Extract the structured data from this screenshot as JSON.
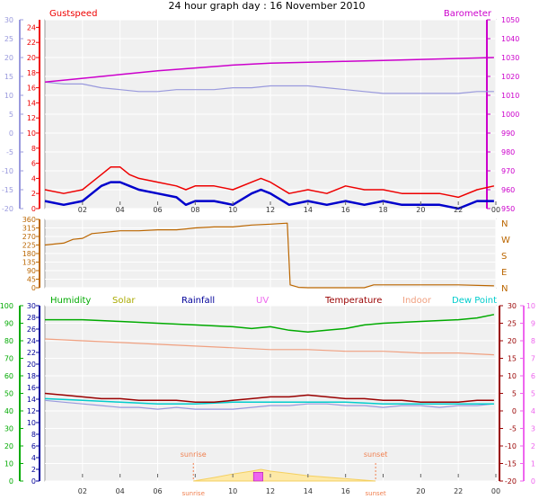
{
  "title": "24 hour graph day : 16 November 2010",
  "colors": {
    "plot_bg": "#f0f0f0",
    "grid": "#ffffff",
    "gust": "#ee0000",
    "wind": "#0000cc",
    "barometer": "#cc00cc",
    "temp_blue": "#9999dd",
    "wind_dir": "#bb6600",
    "humidity": "#00aa00",
    "solar": "#aaaa00",
    "rainfall": "#000099",
    "uv": "#ee66ee",
    "temperature": "#990000",
    "indoor": "#f0a080",
    "dewpoint": "#00cccc",
    "sun_event": "#f08050"
  },
  "x_ticks": [
    "02",
    "04",
    "06",
    "08",
    "10",
    "12",
    "14",
    "16",
    "18",
    "20",
    "22",
    "00"
  ],
  "chart_data": [
    {
      "type": "line",
      "legend": {
        "left": "Gustspeed",
        "right": "Barometer"
      },
      "y_left_outer": {
        "ticks": [
          30,
          25,
          20,
          15,
          10,
          5,
          0,
          -5,
          -10,
          -15,
          -20
        ],
        "range": [
          -20,
          30
        ]
      },
      "y_left_inner": {
        "ticks": [
          24,
          22,
          20,
          18,
          16,
          14,
          12,
          10,
          8,
          6,
          4,
          2,
          0
        ],
        "range": [
          0,
          25
        ]
      },
      "y_right": {
        "ticks": [
          1050,
          1040,
          1030,
          1020,
          1010,
          1000,
          990,
          980,
          970,
          960,
          950
        ],
        "range": [
          950,
          1050
        ]
      },
      "series": [
        {
          "name": "Barometer",
          "axis": "right",
          "x": [
            0,
            2,
            4,
            6,
            8,
            10,
            12,
            14,
            16,
            18,
            20,
            22,
            23.9
          ],
          "values": [
            1017,
            1019,
            1021,
            1023,
            1024.5,
            1026,
            1027,
            1027.5,
            1028,
            1028.5,
            1029,
            1029.5,
            1030
          ]
        },
        {
          "name": "Gustspeed",
          "axis": "left_inner",
          "x": [
            0,
            1,
            2,
            2.5,
            3,
            3.5,
            4,
            4.5,
            5,
            6,
            7,
            7.5,
            8,
            9,
            10,
            11,
            11.5,
            12,
            13,
            14,
            15,
            16,
            17,
            18,
            19,
            20,
            21,
            22,
            23,
            23.9
          ],
          "values": [
            2.5,
            2,
            2.5,
            3.5,
            4.5,
            5.5,
            5.5,
            4.5,
            4,
            3.5,
            3,
            2.5,
            3,
            3,
            2.5,
            3.5,
            4,
            3.5,
            2,
            2.5,
            2,
            3,
            2.5,
            2.5,
            2,
            2,
            2,
            1.5,
            2.5,
            3
          ]
        },
        {
          "x": [
            0,
            1,
            2,
            2.5,
            3,
            3.5,
            4,
            4.5,
            5,
            6,
            7,
            7.5,
            8,
            9,
            10,
            11,
            11.5,
            12,
            13,
            14,
            15,
            16,
            17,
            18,
            19,
            20,
            21,
            22,
            23,
            23.9
          ],
          "values": [
            1,
            0.5,
            1,
            2,
            3,
            3.5,
            3.5,
            3,
            2.5,
            2,
            1.5,
            0.5,
            1,
            1,
            0.5,
            2,
            2.5,
            2,
            0.5,
            1,
            0.5,
            1,
            0.5,
            1,
            0.5,
            0.5,
            0.5,
            0,
            1,
            1
          ]
        },
        {
          "axis": "left_outer",
          "x": [
            0,
            1,
            2,
            2.5,
            3,
            4,
            5,
            6,
            7,
            8,
            9,
            10,
            11,
            12,
            13,
            14,
            15,
            16,
            17,
            18,
            19,
            20,
            21,
            22,
            23,
            23.9
          ],
          "values": [
            13.5,
            13,
            13,
            12.5,
            12,
            11.5,
            11,
            11,
            11.5,
            11.5,
            11.5,
            12,
            12,
            12.5,
            12.5,
            12.5,
            12,
            11.5,
            11,
            10.5,
            10.5,
            10.5,
            10.5,
            10.5,
            11,
            11
          ]
        }
      ]
    },
    {
      "type": "line",
      "y_left": {
        "ticks": [
          360,
          315,
          270,
          225,
          180,
          135,
          90,
          45,
          0
        ],
        "range": [
          0,
          360
        ]
      },
      "y_right_labels": [
        "N",
        "W",
        "S",
        "E",
        "N"
      ],
      "series": [
        {
          "x": [
            0,
            1,
            1.5,
            2,
            2.5,
            3,
            4,
            5,
            6,
            7,
            7.5,
            8,
            9,
            10,
            11,
            12,
            12.9,
            13.05,
            13.5,
            14,
            16,
            17,
            17.5,
            18,
            20,
            22,
            23.9
          ],
          "values": [
            225,
            235,
            255,
            260,
            285,
            290,
            300,
            300,
            305,
            305,
            310,
            315,
            320,
            320,
            330,
            335,
            340,
            15,
            2,
            0,
            0,
            0,
            15,
            15,
            15,
            15,
            10
          ]
        }
      ]
    },
    {
      "type": "line",
      "legend": [
        "Humidity",
        "Solar",
        "Rainfall",
        "UV",
        "Temperature",
        "Indoor",
        "Dew Point"
      ],
      "sunrise_label": "sunrise",
      "sunset_label": "sunset",
      "sunrise_hour": 7.9,
      "sunset_hour": 17.6,
      "y_left_outer": {
        "ticks": [
          100,
          90,
          80,
          70,
          60,
          50,
          40,
          30,
          20,
          10,
          0
        ],
        "range": [
          0,
          100
        ]
      },
      "y_left_inner": {
        "ticks": [
          30,
          28,
          26,
          24,
          22,
          20,
          18,
          16,
          14,
          12,
          10,
          8,
          6,
          4,
          2,
          0
        ],
        "range": [
          0,
          30
        ]
      },
      "y_right_inner": {
        "ticks": [
          30,
          25,
          20,
          15,
          10,
          5,
          0,
          -5,
          -10,
          -15,
          -20
        ],
        "range": [
          -20,
          30
        ]
      },
      "y_right_outer": {
        "ticks": [
          10,
          9,
          8,
          7,
          6,
          5,
          4,
          3,
          2,
          1,
          0
        ],
        "range": [
          0,
          10
        ]
      },
      "series": [
        {
          "name": "Humidity",
          "axis": "left_outer",
          "x": [
            0,
            2,
            4,
            6,
            8,
            10,
            11,
            12,
            13,
            14,
            15,
            16,
            17,
            18,
            20,
            22,
            23,
            23.9
          ],
          "values": [
            92,
            92,
            91,
            90,
            89,
            88,
            87,
            88,
            86,
            85,
            86,
            87,
            89,
            90,
            91,
            92,
            93,
            95
          ]
        },
        {
          "name": "Indoor",
          "axis": "right_inner",
          "x": [
            0,
            2,
            4,
            6,
            8,
            10,
            12,
            14,
            16,
            18,
            20,
            22,
            23.9
          ],
          "values": [
            20.5,
            20,
            19.5,
            19,
            18.5,
            18,
            17.5,
            17.5,
            17,
            17,
            16.5,
            16.5,
            16
          ]
        },
        {
          "name": "Temperature",
          "axis": "right_inner",
          "x": [
            0,
            1,
            2,
            3,
            4,
            5,
            6,
            7,
            8,
            9,
            10,
            11,
            12,
            13,
            14,
            15,
            16,
            17,
            18,
            19,
            20,
            21,
            22,
            23,
            23.9
          ],
          "values": [
            5,
            4.5,
            4,
            3.5,
            3.5,
            3,
            3,
            3,
            2.5,
            2.5,
            3,
            3.5,
            4,
            4,
            4.5,
            4,
            3.5,
            3.5,
            3,
            3,
            2.5,
            2.5,
            2.5,
            3,
            3
          ]
        },
        {
          "name": "Dew Point",
          "axis": "right_inner",
          "x": [
            0,
            2,
            4,
            6,
            8,
            10,
            12,
            14,
            16,
            18,
            20,
            22,
            23.9
          ],
          "values": [
            3.5,
            3,
            2.5,
            2,
            2,
            2.5,
            2.5,
            2.5,
            2.5,
            2,
            2,
            2,
            2
          ]
        },
        {
          "axis": "right_inner",
          "x": [
            0,
            1,
            2,
            3,
            4,
            5,
            6,
            7,
            8,
            9,
            10,
            11,
            12,
            13,
            14,
            15,
            16,
            17,
            18,
            19,
            20,
            21,
            22,
            23,
            23.9
          ],
          "values": [
            3,
            2.5,
            2,
            1.5,
            1,
            1,
            0.5,
            1,
            0.5,
            0.5,
            0.5,
            1,
            1.5,
            1.5,
            2,
            2,
            1.5,
            1.5,
            1,
            1.5,
            1.5,
            1,
            1.5,
            1.5,
            2
          ]
        },
        {
          "name": "Solar",
          "axis": "left_inner",
          "x": [
            7.9,
            9,
            10,
            11,
            11.5,
            12,
            13,
            14,
            16,
            17.6
          ],
          "values": [
            0,
            0.6,
            1.2,
            1.7,
            2,
            1.7,
            1.3,
            0.9,
            0.4,
            0
          ]
        },
        {
          "name": "UV",
          "axis": "right_outer",
          "x": [
            11.1,
            11.6
          ],
          "values": [
            0.5,
            0.5
          ]
        }
      ]
    }
  ]
}
